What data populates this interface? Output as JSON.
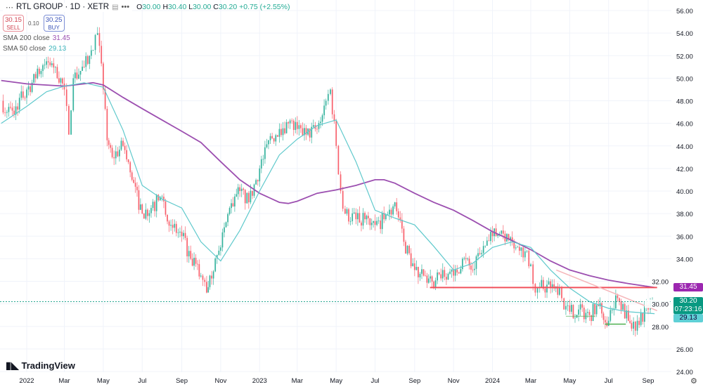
{
  "header": {
    "symbol": "RTL GROUP · 1D · XETR",
    "ohlc": {
      "o_label": "O",
      "o": "30.00",
      "h_label": "H",
      "h": "30.40",
      "l_label": "L",
      "l": "30.00",
      "c_label": "C",
      "c": "30.20",
      "change": "+0.75 (+2.55%)"
    },
    "sell_price": "30.15",
    "sell_label": "SELL",
    "spread": "0.10",
    "buy_price": "30.25",
    "buy_label": "BUY",
    "indicators": [
      {
        "label": "SMA 200 close",
        "value": "31.45",
        "color": "#9c4fb0"
      },
      {
        "label": "SMA 50 close",
        "value": "29.13",
        "color": "#4fc3c9"
      }
    ]
  },
  "branding": "TradingView",
  "price_tags": {
    "sma200": "31.45",
    "last": "30.20",
    "countdown": "07:23:16",
    "sma50": "29.13"
  },
  "colors": {
    "up": "#22ab94",
    "down": "#f7525f",
    "sma200": "#9c4fb0",
    "sma50": "#5fc9cc",
    "support": "#f0505c",
    "trend": "#f5b5b9",
    "green_lines": "#4caf50"
  },
  "chart_data": {
    "type": "candlestick",
    "title": "RTL GROUP · 1D · XETR",
    "ylim": [
      24,
      56
    ],
    "y_ticks": [
      "56.00",
      "54.00",
      "52.00",
      "50.00",
      "48.00",
      "46.00",
      "44.00",
      "42.00",
      "40.00",
      "38.00",
      "36.00",
      "34.00",
      "32.00",
      "30.00",
      "28.00",
      "26.00",
      "24.00"
    ],
    "x_ticks": [
      {
        "label": "2022",
        "date": "2022-01-01"
      },
      {
        "label": "Mar",
        "date": "2022-03-01"
      },
      {
        "label": "May",
        "date": "2022-05-01"
      },
      {
        "label": "Jul",
        "date": "2022-07-01"
      },
      {
        "label": "Sep",
        "date": "2022-09-01"
      },
      {
        "label": "Nov",
        "date": "2022-11-01"
      },
      {
        "label": "2023",
        "date": "2023-01-01"
      },
      {
        "label": "Mar",
        "date": "2023-03-01"
      },
      {
        "label": "May",
        "date": "2023-05-01"
      },
      {
        "label": "Jul",
        "date": "2023-07-01"
      },
      {
        "label": "Sep",
        "date": "2023-09-01"
      },
      {
        "label": "Nov",
        "date": "2023-11-01"
      },
      {
        "label": "2024",
        "date": "2024-01-01"
      },
      {
        "label": "Mar",
        "date": "2024-03-01"
      },
      {
        "label": "May",
        "date": "2024-05-01"
      },
      {
        "label": "Jul",
        "date": "2024-07-01"
      },
      {
        "label": "Sep",
        "date": "2024-09-01"
      }
    ],
    "grid": true,
    "price_close": [
      [
        "2021-11-22",
        48
      ],
      [
        "2021-12-01",
        47
      ],
      [
        "2021-12-15",
        47.5
      ],
      [
        "2022-01-01",
        49
      ],
      [
        "2022-01-15",
        50
      ],
      [
        "2022-02-01",
        51.5
      ],
      [
        "2022-02-15",
        51
      ],
      [
        "2022-03-01",
        49
      ],
      [
        "2022-03-08",
        45
      ],
      [
        "2022-03-15",
        50
      ],
      [
        "2022-04-01",
        51
      ],
      [
        "2022-04-15",
        52.5
      ],
      [
        "2022-04-22",
        54
      ],
      [
        "2022-05-01",
        49
      ],
      [
        "2022-05-07",
        44.5
      ],
      [
        "2022-05-15",
        43
      ],
      [
        "2022-06-01",
        44
      ],
      [
        "2022-06-15",
        41
      ],
      [
        "2022-07-01",
        38
      ],
      [
        "2022-07-15",
        38.5
      ],
      [
        "2022-08-01",
        39.5
      ],
      [
        "2022-08-15",
        37
      ],
      [
        "2022-09-01",
        36
      ],
      [
        "2022-09-15",
        34
      ],
      [
        "2022-10-01",
        32.5
      ],
      [
        "2022-10-10",
        31
      ],
      [
        "2022-10-15",
        32.5
      ],
      [
        "2022-11-01",
        35
      ],
      [
        "2022-11-15",
        38.5
      ],
      [
        "2022-12-01",
        40
      ],
      [
        "2022-12-15",
        39
      ],
      [
        "2023-01-01",
        42
      ],
      [
        "2023-01-15",
        44.5
      ],
      [
        "2023-02-01",
        45.5
      ],
      [
        "2023-02-15",
        46
      ],
      [
        "2023-03-01",
        45.5
      ],
      [
        "2023-03-15",
        45
      ],
      [
        "2023-04-01",
        45.5
      ],
      [
        "2023-04-15",
        48
      ],
      [
        "2023-04-22",
        49
      ],
      [
        "2023-05-01",
        44
      ],
      [
        "2023-05-08",
        40
      ],
      [
        "2023-05-15",
        38
      ],
      [
        "2023-06-01",
        37.5
      ],
      [
        "2023-06-15",
        37.5
      ],
      [
        "2023-07-01",
        37
      ],
      [
        "2023-07-15",
        37.5
      ],
      [
        "2023-08-01",
        39
      ],
      [
        "2023-08-15",
        35.5
      ],
      [
        "2023-09-01",
        33
      ],
      [
        "2023-09-15",
        32.5
      ],
      [
        "2023-10-01",
        31.5
      ],
      [
        "2023-10-15",
        33
      ],
      [
        "2023-11-01",
        32.5
      ],
      [
        "2023-11-15",
        34
      ],
      [
        "2023-12-01",
        33
      ],
      [
        "2023-12-15",
        34.5
      ],
      [
        "2024-01-01",
        36
      ],
      [
        "2024-01-15",
        36.5
      ],
      [
        "2024-02-01",
        35.5
      ],
      [
        "2024-02-15",
        35
      ],
      [
        "2024-03-01",
        33.5
      ],
      [
        "2024-03-08",
        31
      ],
      [
        "2024-03-15",
        31.5
      ],
      [
        "2024-04-01",
        31.5
      ],
      [
        "2024-04-15",
        31.5
      ],
      [
        "2024-04-22",
        29.5
      ],
      [
        "2024-05-01",
        29.3
      ],
      [
        "2024-05-15",
        29.5
      ],
      [
        "2024-06-01",
        29
      ],
      [
        "2024-06-15",
        29.8
      ],
      [
        "2024-07-01",
        28.5
      ],
      [
        "2024-07-15",
        30.5
      ],
      [
        "2024-08-01",
        28.5
      ],
      [
        "2024-08-06",
        27.8
      ],
      [
        "2024-08-15",
        28.5
      ],
      [
        "2024-09-01",
        29.5
      ],
      [
        "2024-09-11",
        30.2
      ]
    ],
    "series": [
      {
        "name": "SMA 200 close",
        "points": [
          [
            "2021-11-22",
            49.8
          ],
          [
            "2022-01-01",
            49.5
          ],
          [
            "2022-03-01",
            49.3
          ],
          [
            "2022-04-15",
            49.6
          ],
          [
            "2022-05-01",
            49.4
          ],
          [
            "2022-06-01",
            48.3
          ],
          [
            "2022-07-01",
            47.3
          ],
          [
            "2022-08-01",
            46.3
          ],
          [
            "2022-09-01",
            45.3
          ],
          [
            "2022-10-01",
            44.3
          ],
          [
            "2022-11-01",
            42.6
          ],
          [
            "2022-12-01",
            41
          ],
          [
            "2023-01-01",
            39.8
          ],
          [
            "2023-02-01",
            39
          ],
          [
            "2023-02-15",
            38.9
          ],
          [
            "2023-03-01",
            39.1
          ],
          [
            "2023-04-01",
            39.8
          ],
          [
            "2023-05-01",
            40.1
          ],
          [
            "2023-06-01",
            40.5
          ],
          [
            "2023-07-01",
            41
          ],
          [
            "2023-07-15",
            41
          ],
          [
            "2023-08-01",
            40.7
          ],
          [
            "2023-09-01",
            39.8
          ],
          [
            "2023-10-01",
            39
          ],
          [
            "2023-11-01",
            38.3
          ],
          [
            "2023-12-01",
            37.4
          ],
          [
            "2024-01-01",
            36.4
          ],
          [
            "2024-02-01",
            35.6
          ],
          [
            "2024-03-01",
            34.8
          ],
          [
            "2024-04-01",
            33.8
          ],
          [
            "2024-05-01",
            33
          ],
          [
            "2024-06-01",
            32.5
          ],
          [
            "2024-07-01",
            32.1
          ],
          [
            "2024-08-01",
            31.8
          ],
          [
            "2024-09-11",
            31.45
          ]
        ]
      },
      {
        "name": "SMA 50 close",
        "points": [
          [
            "2021-11-22",
            46
          ],
          [
            "2022-01-01",
            47.5
          ],
          [
            "2022-02-01",
            48.8
          ],
          [
            "2022-03-01",
            49.3
          ],
          [
            "2022-04-01",
            49.6
          ],
          [
            "2022-05-01",
            49.2
          ],
          [
            "2022-06-01",
            45.4
          ],
          [
            "2022-07-01",
            40.5
          ],
          [
            "2022-08-01",
            39.3
          ],
          [
            "2022-09-01",
            38.5
          ],
          [
            "2022-10-01",
            35.5
          ],
          [
            "2022-11-01",
            33.8
          ],
          [
            "2022-12-01",
            36.5
          ],
          [
            "2023-01-01",
            40
          ],
          [
            "2023-02-01",
            43.2
          ],
          [
            "2023-03-01",
            44.6
          ],
          [
            "2023-04-01",
            45.8
          ],
          [
            "2023-05-01",
            46.3
          ],
          [
            "2023-06-01",
            42.6
          ],
          [
            "2023-07-01",
            38.3
          ],
          [
            "2023-08-01",
            37.6
          ],
          [
            "2023-09-01",
            37
          ],
          [
            "2023-10-01",
            35.1
          ],
          [
            "2023-11-01",
            33
          ],
          [
            "2023-12-01",
            33.6
          ],
          [
            "2024-01-01",
            35
          ],
          [
            "2024-02-01",
            35.5
          ],
          [
            "2024-03-01",
            35
          ],
          [
            "2024-04-01",
            33
          ],
          [
            "2024-05-01",
            31.4
          ],
          [
            "2024-06-01",
            30.2
          ],
          [
            "2024-07-01",
            29.6
          ],
          [
            "2024-08-01",
            29.3
          ],
          [
            "2024-09-11",
            29.13
          ]
        ]
      }
    ],
    "annotations": [
      {
        "type": "horizontal",
        "price": 31.45,
        "from": "2023-09-25",
        "to": "2024-09-15"
      },
      {
        "type": "trendline",
        "from": [
          "2024-04-10",
          33
        ],
        "to": [
          "2024-09-15",
          29.4
        ]
      },
      {
        "type": "horizontal",
        "price": 28.9,
        "from": "2024-04-25",
        "to": "2024-06-10"
      },
      {
        "type": "horizontal",
        "price": 28.2,
        "from": "2024-06-25",
        "to": "2024-07-28"
      },
      {
        "type": "price-line",
        "price": 30.2
      }
    ]
  }
}
